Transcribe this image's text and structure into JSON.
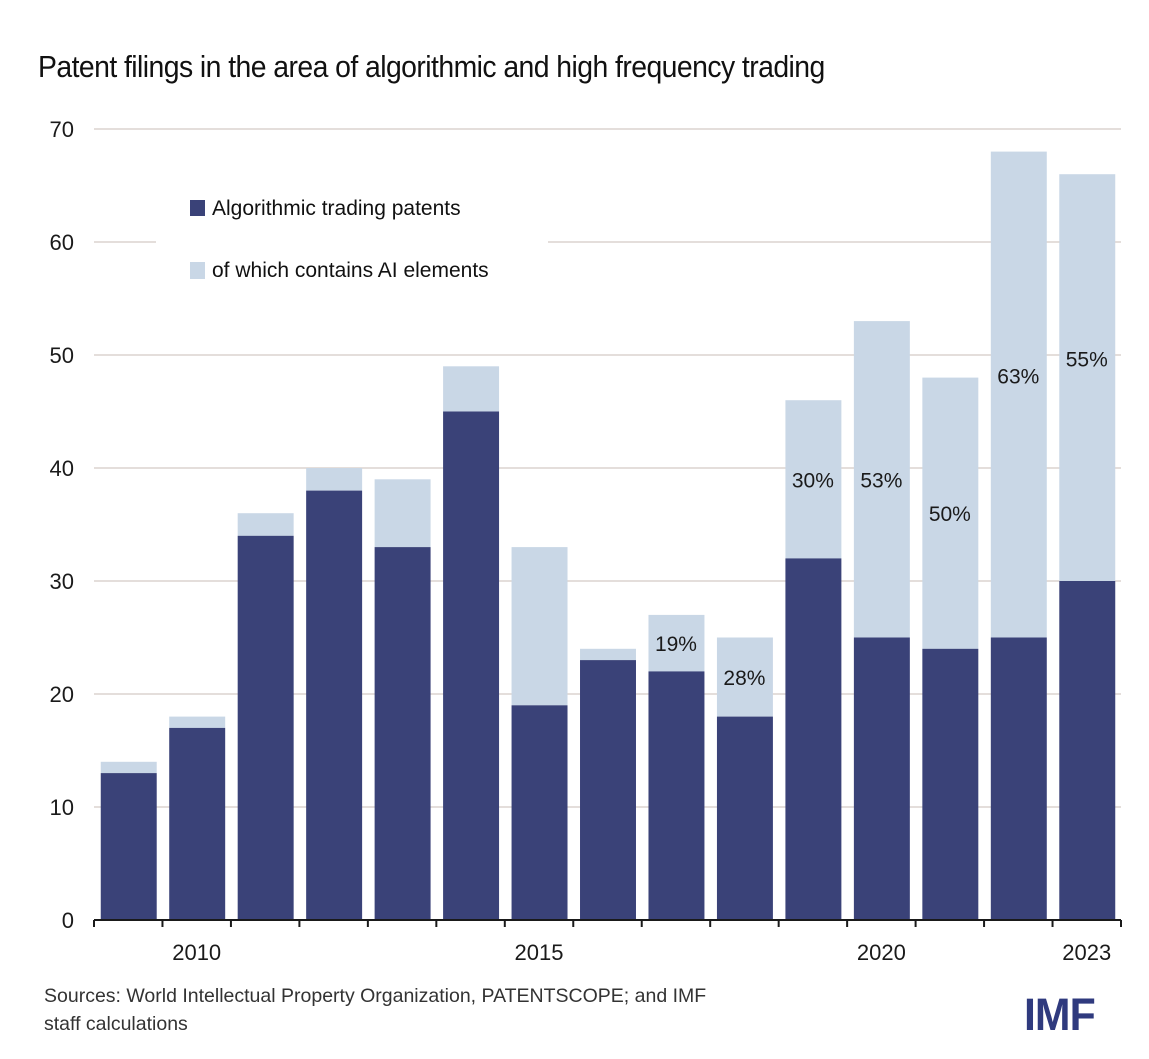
{
  "colors": {
    "algorithmic": "#3a4278",
    "ai": "#c9d7e6",
    "grid": "#e4dedb",
    "axis": "#1a1a1a",
    "logo": "#2f3a7e"
  },
  "footer": {
    "source_line1": "Sources: World Intellectual Property Organization, PATENTSCOPE; and IMF",
    "source_line2": "staff calculations",
    "logo": "IMF"
  },
  "chart_data": {
    "type": "bar",
    "stacked": true,
    "title": "Patent filings in the area of algorithmic and high frequency trading",
    "xlabel": "",
    "ylabel": "",
    "ylim": [
      0,
      70
    ],
    "yticks": [
      0,
      10,
      20,
      30,
      40,
      50,
      60,
      70
    ],
    "grid": true,
    "legend_position": "top-left",
    "categories": [
      "2009",
      "2010",
      "2011",
      "2012",
      "2013",
      "2014",
      "2015",
      "2016",
      "2017",
      "2018",
      "2019",
      "2020",
      "2021",
      "2022",
      "2023"
    ],
    "xtick_labels": [
      {
        "category": "2010",
        "label": "2010"
      },
      {
        "category": "2015",
        "label": "2015"
      },
      {
        "category": "2020",
        "label": "2020"
      },
      {
        "category": "2023",
        "label": "2023"
      }
    ],
    "series": [
      {
        "name": "Algorithmic trading patents",
        "color": "#3a4278",
        "values": [
          13,
          17,
          34,
          38,
          33,
          45,
          19,
          23,
          22,
          18,
          32,
          25,
          24,
          25,
          30
        ]
      },
      {
        "name": "of which contains AI elements",
        "color": "#c9d7e6",
        "values": [
          1,
          1,
          2,
          2,
          6,
          4,
          14,
          1,
          5,
          7,
          14,
          28,
          24,
          43,
          36
        ]
      }
    ],
    "totals": [
      14,
      18,
      36,
      40,
      39,
      49,
      33,
      24,
      27,
      25,
      46,
      53,
      48,
      68,
      66
    ],
    "annotations": [
      {
        "category": "2017",
        "text": "19%"
      },
      {
        "category": "2018",
        "text": "28%"
      },
      {
        "category": "2019",
        "text": "30%"
      },
      {
        "category": "2020",
        "text": "53%"
      },
      {
        "category": "2021",
        "text": "50%"
      },
      {
        "category": "2022",
        "text": "63%"
      },
      {
        "category": "2023",
        "text": "55%"
      }
    ]
  }
}
